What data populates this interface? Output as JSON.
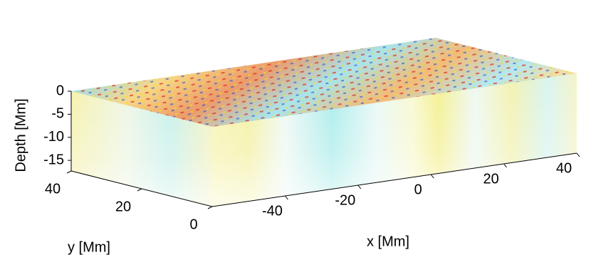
{
  "chart_data": {
    "type": "volume",
    "xlabel": "x  [Mm]",
    "ylabel": "y  [Mm]",
    "zlabel": "Depth  [Mm]",
    "xlim": [
      -60,
      40
    ],
    "ylim": [
      0,
      40
    ],
    "zlim": [
      -17.3,
      0
    ],
    "xticks": [
      -40,
      -20,
      0,
      20,
      40
    ],
    "yticks": [
      0,
      20,
      40
    ],
    "zticks": [
      0,
      -5,
      -10,
      -15
    ]
  }
}
